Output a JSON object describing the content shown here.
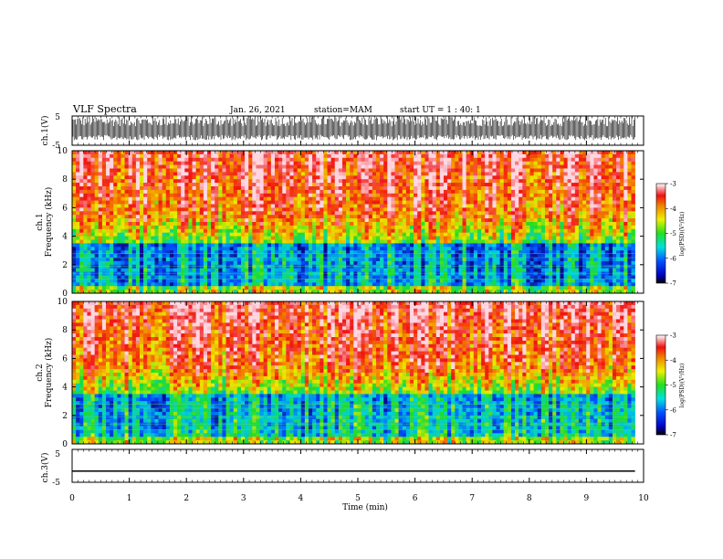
{
  "header": {
    "title": "VLF Spectra",
    "date": "Jan. 26, 2021",
    "station": "station=MAM",
    "start_ut": "start UT =   1 : 40: 1"
  },
  "colors": {
    "spec_low": "#0a0a8c",
    "spec_mid": "#00d8d8",
    "spec_green": "#20e020",
    "spec_yellow": "#f0f000",
    "spec_red": "#f01010",
    "spec_high": "#ffd8e0"
  },
  "chart_data": [
    {
      "type": "line",
      "panel": "ch1-waveform",
      "ylabel": "ch.1(V)",
      "ylim": [
        -5,
        5
      ],
      "yticks": [
        "5",
        "-5"
      ],
      "xlim": [
        0,
        10
      ],
      "description_values": "dense broadband waveform filling approx -3 to +5 V range"
    },
    {
      "type": "heatmap",
      "panel": "ch1-spectrogram",
      "ylabel": "ch.1 Frequency (kHz)",
      "ylim": [
        0,
        10
      ],
      "yticks": [
        "0",
        "2",
        "4",
        "6",
        "8",
        "10"
      ],
      "xlim": [
        0,
        10
      ],
      "colorbar": {
        "label": "log(PSD)(V²/Hz)",
        "ticks": [
          "-3",
          "-4",
          "-5",
          "-6",
          "-7"
        ],
        "range": [
          -7,
          -3
        ]
      }
    },
    {
      "type": "heatmap",
      "panel": "ch2-spectrogram",
      "ylabel": "ch.2 Frequency (kHz)",
      "ylim": [
        0,
        10
      ],
      "yticks": [
        "0",
        "2",
        "4",
        "6",
        "8",
        "10"
      ],
      "xlim": [
        0,
        10
      ],
      "colorbar": {
        "label": "log(PSD)(V²/Hz)",
        "ticks": [
          "-3",
          "-4",
          "-5",
          "-6",
          "-7"
        ],
        "range": [
          -7,
          -3
        ]
      }
    },
    {
      "type": "line",
      "panel": "ch3-waveform",
      "ylabel": "ch.3(V)",
      "ylim": [
        -5,
        5
      ],
      "yticks": [
        "5",
        "-5"
      ],
      "xlim": [
        0,
        10
      ],
      "x": [
        0,
        9.85
      ],
      "y": [
        -1.6,
        -1.6
      ]
    }
  ],
  "xaxis": {
    "label": "Time (min)",
    "ticks": [
      "0",
      "1",
      "2",
      "3",
      "4",
      "5",
      "6",
      "7",
      "8",
      "9",
      "10"
    ]
  }
}
